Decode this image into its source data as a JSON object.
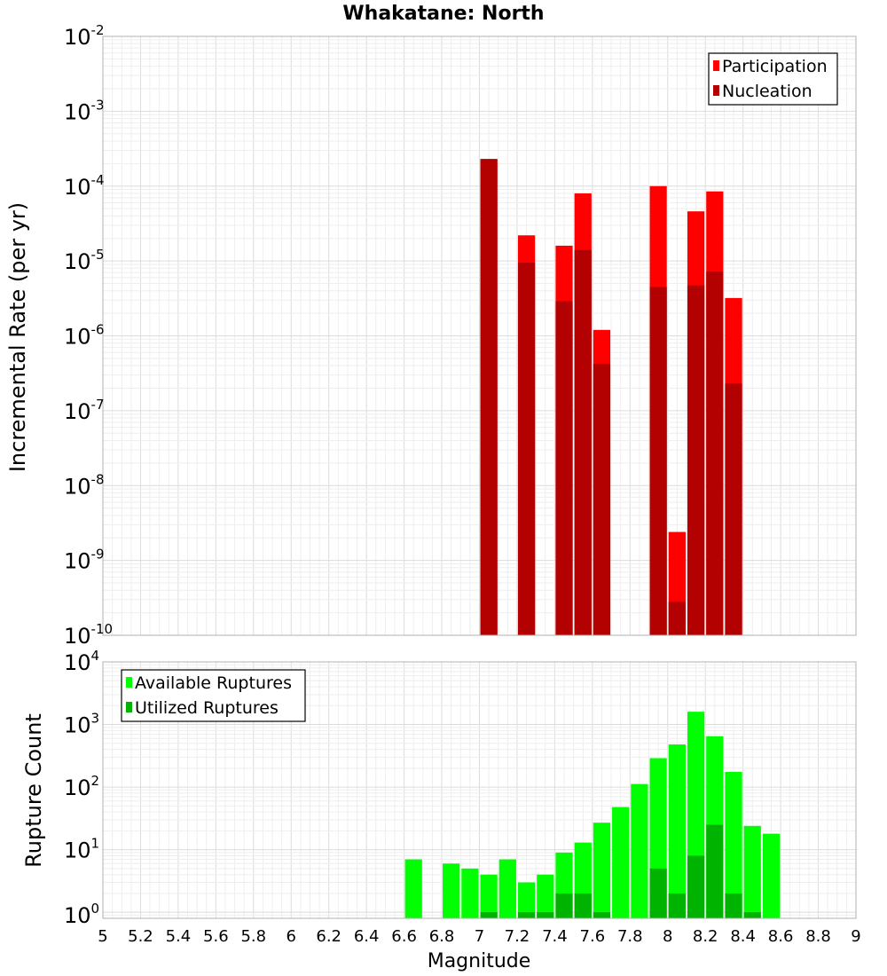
{
  "chart_data": [
    {
      "type": "bar",
      "title": "Whakatane: North",
      "ylabel": "Incremental Rate (per yr)",
      "xlabel": "",
      "y_scale": "log",
      "ylim": [
        1e-10,
        0.01
      ],
      "xlim": [
        5,
        9
      ],
      "yticks": [
        {
          "base": "10",
          "exp": "-2"
        },
        {
          "base": "10",
          "exp": "-3"
        },
        {
          "base": "10",
          "exp": "-4"
        },
        {
          "base": "10",
          "exp": "-5"
        },
        {
          "base": "10",
          "exp": "-6"
        },
        {
          "base": "10",
          "exp": "-7"
        },
        {
          "base": "10",
          "exp": "-8"
        },
        {
          "base": "10",
          "exp": "-9"
        },
        {
          "base": "10",
          "exp": "-10"
        }
      ],
      "grid": true,
      "legend_position": "top-right",
      "series": [
        {
          "name": "Participation",
          "color": "#ff0000",
          "x": [
            7.05,
            7.25,
            7.45,
            7.55,
            7.65,
            7.95,
            8.05,
            8.15,
            8.25,
            8.35
          ],
          "values": [
            0.00023,
            2.2e-05,
            1.6e-05,
            8e-05,
            1.2e-06,
            0.0001,
            2.4e-09,
            4.6e-05,
            8.5e-05,
            3.2e-06
          ]
        },
        {
          "name": "Nucleation",
          "color": "#b30000",
          "x": [
            7.05,
            7.25,
            7.45,
            7.55,
            7.65,
            7.95,
            8.05,
            8.15,
            8.25,
            8.35
          ],
          "values": [
            0.00023,
            9.5e-06,
            2.9e-06,
            1.4e-05,
            4.2e-07,
            4.5e-06,
            2.8e-10,
            4.7e-06,
            7.2e-06,
            2.3e-07
          ]
        }
      ]
    },
    {
      "type": "bar",
      "title": "",
      "ylabel": "Rupture Count",
      "xlabel": "Magnitude",
      "y_scale": "log",
      "ylim": [
        0.8,
        10000
      ],
      "xlim": [
        5,
        9
      ],
      "xticks": [
        "5",
        "5.2",
        "5.4",
        "5.6",
        "5.8",
        "6",
        "6.2",
        "6.4",
        "6.6",
        "6.8",
        "7",
        "7.2",
        "7.4",
        "7.6",
        "7.8",
        "8",
        "8.2",
        "8.4",
        "8.6",
        "8.8",
        "9"
      ],
      "yticks": [
        {
          "base": "10",
          "exp": "4"
        },
        {
          "base": "10",
          "exp": "3"
        },
        {
          "base": "10",
          "exp": "2"
        },
        {
          "base": "10",
          "exp": "1"
        },
        {
          "base": "10",
          "exp": "0"
        }
      ],
      "grid": true,
      "legend_position": "top-left",
      "series": [
        {
          "name": "Available Ruptures",
          "color": "#00ff00",
          "x": [
            6.65,
            6.85,
            6.95,
            7.05,
            7.15,
            7.25,
            7.35,
            7.45,
            7.55,
            7.65,
            7.75,
            7.85,
            7.95,
            8.05,
            8.15,
            8.25,
            8.35,
            8.45,
            8.55
          ],
          "values": [
            7,
            6,
            5,
            4,
            7,
            3,
            4,
            9,
            13,
            27,
            48,
            112,
            290,
            480,
            1600,
            650,
            175,
            24,
            18
          ]
        },
        {
          "name": "Utilized Ruptures",
          "color": "#00b300",
          "x": [
            7.05,
            7.25,
            7.35,
            7.45,
            7.55,
            7.65,
            7.95,
            8.05,
            8.15,
            8.25,
            8.35,
            8.45
          ],
          "values": [
            1,
            1,
            1,
            2,
            2,
            1,
            5,
            2,
            8,
            25,
            2,
            1
          ]
        }
      ]
    }
  ]
}
